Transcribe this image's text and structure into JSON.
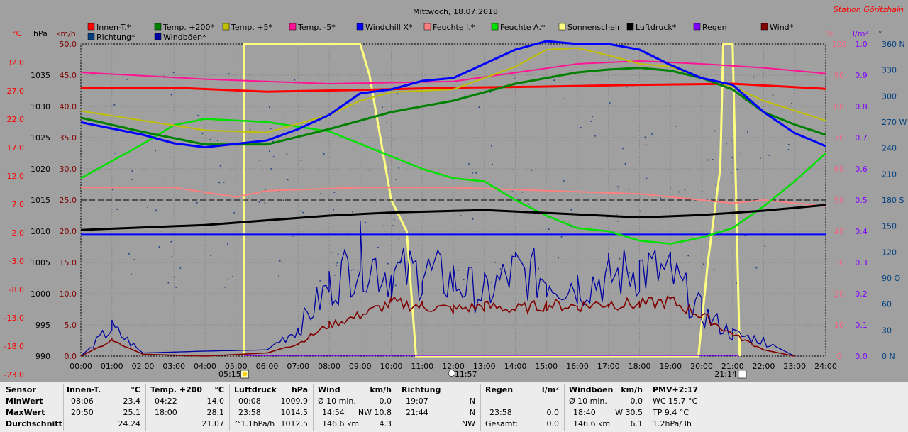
{
  "title": "Mittwoch, 18.07.2018",
  "station": "Station Göritzhain",
  "legend": [
    {
      "label": "Innen-T.*",
      "color": "#ff0000"
    },
    {
      "label": "Temp. +200*",
      "color": "#008000"
    },
    {
      "label": "Temp. +5*",
      "color": "#c0c000"
    },
    {
      "label": "Temp. -5*",
      "color": "#ff1493"
    },
    {
      "label": "Windchill X*",
      "color": "#0000ff"
    },
    {
      "label": "Feuchte I.*",
      "color": "#ff8080"
    },
    {
      "label": "Feuchte A.*",
      "color": "#00e000"
    },
    {
      "label": "Sonnenschein",
      "color": "#ffff80"
    },
    {
      "label": "Luftdruck*",
      "color": "#000000"
    },
    {
      "label": "Regen",
      "color": "#8000ff"
    },
    {
      "label": "Wind*",
      "color": "#800000"
    },
    {
      "label": "Richtung*",
      "color": "#004080"
    },
    {
      "label": "Windböen*",
      "color": "#0000a0"
    }
  ],
  "axes": {
    "units": {
      "celsius": "°C",
      "hpa": "hPa",
      "kmh": "km/h",
      "percent": "%",
      "rain": "l/m²",
      "dir": "°"
    },
    "celsius_ticks": [
      "32.0",
      "27.0",
      "22.0",
      "17.0",
      "12.0",
      "7.0",
      "2.0",
      "-3.0",
      "-8.0",
      "-13.0",
      "-18.0",
      "-23.0"
    ],
    "hpa_ticks": [
      "1035",
      "1030",
      "1025",
      "1020",
      "1015",
      "1010",
      "1005",
      "1000",
      "995",
      "990"
    ],
    "kmh_ticks": [
      "50.0",
      "45.0",
      "40.0",
      "35.0",
      "30.0",
      "25.0",
      "20.0",
      "15.0",
      "10.0",
      "5.0",
      "0.0"
    ],
    "percent_ticks": [
      "100",
      "90",
      "80",
      "70",
      "60",
      "50",
      "40",
      "30",
      "20",
      "10",
      "0"
    ],
    "rain_ticks": [
      "1.0",
      "0.9",
      "0.8",
      "0.7",
      "0.6",
      "0.5",
      "0.4",
      "0.3",
      "0.2",
      "0.1",
      "0.0"
    ],
    "dir_ticks": [
      "360 N",
      "330",
      "300",
      "270 W",
      "240",
      "210",
      "180 S",
      "150",
      "120",
      "90 O",
      "60",
      "30",
      "0 N"
    ],
    "time_ticks": [
      "00:00",
      "01:00",
      "02:00",
      "03:00",
      "04:00",
      "05:00",
      "06:00",
      "07:00",
      "08:00",
      "09:00",
      "10:00",
      "11:00",
      "12:00",
      "13:00",
      "14:00",
      "15:00",
      "16:00",
      "17:00",
      "18:00",
      "19:00",
      "20:00",
      "21:00",
      "22:00",
      "23:00",
      "24:00"
    ],
    "sunrise": "05:15",
    "noon": "11:57",
    "sunset": "21:14"
  },
  "chart_data": {
    "type": "line",
    "title": "Mittwoch, 18.07.2018",
    "x_unit": "hour",
    "ylim_kmh": [
      0,
      50
    ],
    "series": [
      {
        "name": "Innen-T.*",
        "unit": "°C",
        "points": [
          [
            0,
            24.3
          ],
          [
            3,
            24.3
          ],
          [
            6,
            23.6
          ],
          [
            9,
            23.9
          ],
          [
            12,
            24.3
          ],
          [
            15,
            24.5
          ],
          [
            18,
            24.8
          ],
          [
            21,
            25.0
          ],
          [
            24,
            24.1
          ]
        ]
      },
      {
        "name": "Temp. +200*",
        "unit": "°C",
        "points": [
          [
            0,
            19.0
          ],
          [
            2,
            16.5
          ],
          [
            4,
            14.3
          ],
          [
            6,
            14.3
          ],
          [
            8,
            17.0
          ],
          [
            10,
            20.0
          ],
          [
            12,
            22.0
          ],
          [
            13,
            23.5
          ],
          [
            14,
            25.0
          ],
          [
            15,
            26.0
          ],
          [
            16,
            27.0
          ],
          [
            17,
            27.5
          ],
          [
            18,
            27.8
          ],
          [
            19,
            27.3
          ],
          [
            20,
            26.0
          ],
          [
            21,
            24.0
          ],
          [
            22,
            20.0
          ],
          [
            23,
            17.8
          ],
          [
            24,
            16.0
          ]
        ]
      },
      {
        "name": "Temp. +5*",
        "unit": "°C",
        "points": [
          [
            0,
            20.2
          ],
          [
            2,
            18.5
          ],
          [
            4,
            16.8
          ],
          [
            6,
            16.4
          ],
          [
            8,
            19.5
          ],
          [
            9,
            22.0
          ],
          [
            10,
            23.5
          ],
          [
            12,
            24.0
          ],
          [
            14,
            28.0
          ],
          [
            15,
            31.0
          ],
          [
            16,
            31.3
          ],
          [
            17,
            30.0
          ],
          [
            18,
            28.5
          ],
          [
            19,
            28.0
          ],
          [
            20,
            26.0
          ],
          [
            21,
            24.5
          ],
          [
            22,
            22.0
          ],
          [
            24,
            18.5
          ]
        ]
      },
      {
        "name": "Temp. -5*",
        "unit": "°C",
        "points": [
          [
            0,
            27.0
          ],
          [
            4,
            25.8
          ],
          [
            8,
            25.0
          ],
          [
            12,
            25.4
          ],
          [
            16,
            28.5
          ],
          [
            18,
            29.0
          ],
          [
            20,
            28.5
          ],
          [
            22,
            27.8
          ],
          [
            24,
            26.8
          ]
        ]
      },
      {
        "name": "Windchill X*",
        "unit": "°C",
        "points": [
          [
            0,
            18.2
          ],
          [
            2,
            16.0
          ],
          [
            3,
            14.5
          ],
          [
            4,
            13.8
          ],
          [
            6,
            15.0
          ],
          [
            7,
            17.0
          ],
          [
            8,
            19.5
          ],
          [
            9,
            23.3
          ],
          [
            10,
            24.0
          ],
          [
            11,
            25.5
          ],
          [
            12,
            26.0
          ],
          [
            13,
            28.5
          ],
          [
            14,
            31.0
          ],
          [
            15,
            32.5
          ],
          [
            16,
            32.0
          ],
          [
            17,
            32.0
          ],
          [
            18,
            31.0
          ],
          [
            19,
            28.3
          ],
          [
            20,
            26.0
          ],
          [
            21,
            24.8
          ],
          [
            22,
            20.0
          ],
          [
            23,
            16.3
          ],
          [
            24,
            14.0
          ]
        ]
      },
      {
        "name": "Feuchte I.*",
        "unit": "%",
        "points": [
          [
            0,
            54
          ],
          [
            3,
            54
          ],
          [
            5,
            51
          ],
          [
            6,
            53
          ],
          [
            9,
            54
          ],
          [
            12,
            54
          ],
          [
            15,
            53
          ],
          [
            18,
            52
          ],
          [
            20,
            50
          ],
          [
            21,
            49
          ],
          [
            22,
            50
          ],
          [
            24,
            48
          ]
        ]
      },
      {
        "name": "Feuchte A.*",
        "unit": "%",
        "points": [
          [
            0,
            57
          ],
          [
            2,
            68
          ],
          [
            3,
            74
          ],
          [
            4,
            76
          ],
          [
            6,
            75
          ],
          [
            8,
            72
          ],
          [
            9,
            68
          ],
          [
            10,
            64
          ],
          [
            11,
            60
          ],
          [
            12,
            57
          ],
          [
            13,
            56
          ],
          [
            14,
            50
          ],
          [
            15,
            45
          ],
          [
            16,
            41
          ],
          [
            17,
            40
          ],
          [
            18,
            37
          ],
          [
            19,
            36
          ],
          [
            20,
            38
          ],
          [
            21,
            41
          ],
          [
            22,
            48
          ],
          [
            23,
            56
          ],
          [
            24,
            65
          ]
        ]
      },
      {
        "name": "Luftdruck*",
        "unit": "hPa",
        "points": [
          [
            0,
            1010.2
          ],
          [
            4,
            1011.0
          ],
          [
            8,
            1012.5
          ],
          [
            10,
            1013.0
          ],
          [
            13,
            1013.4
          ],
          [
            16,
            1012.7
          ],
          [
            18,
            1012.2
          ],
          [
            20,
            1012.6
          ],
          [
            22,
            1013.3
          ],
          [
            24,
            1014.2
          ]
        ]
      },
      {
        "name": "Sonnenschein",
        "unit": "%",
        "points": [
          [
            5.25,
            0
          ],
          [
            5.25,
            100
          ],
          [
            9.0,
            100
          ],
          [
            9.3,
            90
          ],
          [
            10.0,
            50
          ],
          [
            10.5,
            40
          ],
          [
            10.8,
            0
          ],
          [
            19.9,
            0
          ],
          [
            20.2,
            30
          ],
          [
            20.6,
            60
          ],
          [
            20.7,
            100
          ],
          [
            21.0,
            100
          ],
          [
            21.23,
            0
          ]
        ]
      },
      {
        "name": "Wind*",
        "unit": "km/h",
        "points": [
          [
            0,
            0
          ],
          [
            1,
            2.5
          ],
          [
            2,
            0.3
          ],
          [
            4,
            0
          ],
          [
            6,
            0.5
          ],
          [
            7,
            2.0
          ],
          [
            8,
            5.0
          ],
          [
            9,
            6.5
          ],
          [
            10,
            8.5
          ],
          [
            11,
            8.0
          ],
          [
            12,
            7.5
          ],
          [
            13,
            8.0
          ],
          [
            14,
            7.5
          ],
          [
            15,
            8.2
          ],
          [
            16,
            8.0
          ],
          [
            17,
            8.5
          ],
          [
            18,
            8.2
          ],
          [
            19,
            8.8
          ],
          [
            20,
            6.5
          ],
          [
            21,
            3.5
          ],
          [
            22,
            1.0
          ],
          [
            23,
            0
          ]
        ]
      },
      {
        "name": "Windböen*",
        "unit": "km/h",
        "points": [
          [
            0,
            0
          ],
          [
            1,
            4.5
          ],
          [
            2,
            0.5
          ],
          [
            4,
            0.8
          ],
          [
            6,
            1.0
          ],
          [
            7,
            4.5
          ],
          [
            8,
            11.0
          ],
          [
            9,
            16.0
          ],
          [
            10,
            13.0
          ],
          [
            11,
            13.5
          ],
          [
            12,
            12.0
          ],
          [
            13,
            10.0
          ],
          [
            14,
            13.5
          ],
          [
            15,
            12.5
          ],
          [
            16,
            11.5
          ],
          [
            17,
            12.5
          ],
          [
            18,
            14.0
          ],
          [
            19,
            13.0
          ],
          [
            20,
            7.0
          ],
          [
            21,
            3.5
          ],
          [
            22,
            2.5
          ],
          [
            23,
            0
          ]
        ]
      }
    ]
  },
  "stats": {
    "labels": {
      "sensor": "Sensor",
      "min": "MinWert",
      "max": "MaxWert",
      "avg": "Durchschnitt"
    },
    "innen": {
      "title": "Innen-T.",
      "unit": "°C",
      "min_t": "08:06",
      "min_v": "23.4",
      "max_t": "20:50",
      "max_v": "25.1",
      "avg_v": "24.24"
    },
    "temp": {
      "title": "Temp. +200",
      "unit": "°C",
      "min_t": "04:22",
      "min_v": "14.0",
      "max_t": "18:00",
      "max_v": "28.1",
      "avg_v": "21.07"
    },
    "druck": {
      "title": "Luftdruck",
      "unit": "hPa",
      "min_t": "00:08",
      "min_v": "1009.9",
      "max_t": "23:58",
      "max_v": "1014.5",
      "avg_t": "^1.1hPa/h",
      "avg_v": "1012.5"
    },
    "wind": {
      "title": "Wind",
      "unit": "km/h",
      "r1a": "Ø 10 min.",
      "r1b": "0.0",
      "r2a": "14:54",
      "r2b": "NW 10.8",
      "r3a": "146.6 km",
      "r3b": "4.3"
    },
    "richtung": {
      "title": "Richtung",
      "r1a": "19:07",
      "r1b": "N",
      "r2a": "21:44",
      "r2b": "N",
      "r3b": "NW"
    },
    "regen": {
      "title": "Regen",
      "unit": "l/m²",
      "r2a": "23:58",
      "r2b": "0.0",
      "r3a": "Gesamt:",
      "r3b": "0.0"
    },
    "boeen": {
      "title": "Windböen",
      "unit": "km/h",
      "r1a": "Ø 10 min.",
      "r1b": "0.0",
      "r2a": "18:40",
      "r2b": "W 30.5",
      "r3a": "146.6 km",
      "r3b": "6.1"
    },
    "pmv": {
      "title": "PMV+2:17",
      "r1": "WC 15.7 °C",
      "r2": "TP 9.4 °C",
      "r3": "1.2hPa/3h"
    }
  }
}
